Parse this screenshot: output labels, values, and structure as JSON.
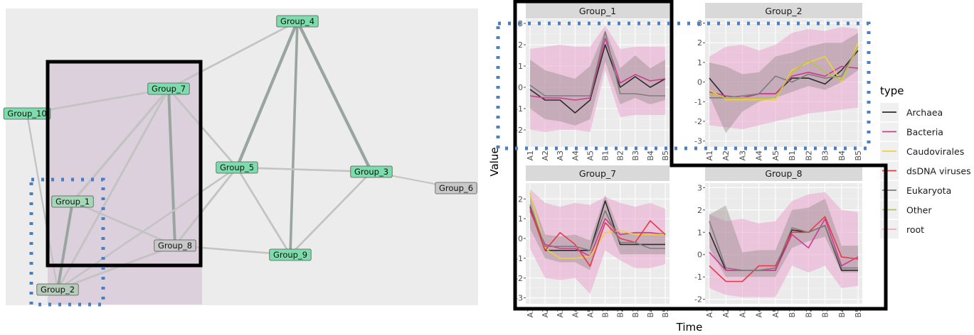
{
  "network": {
    "nodes": [
      {
        "id": "Group_4",
        "label": "Group_4",
        "color": "#7ddcac"
      },
      {
        "id": "Group_7",
        "label": "Group_7",
        "color": "#7ddcac"
      },
      {
        "id": "Group_10",
        "label": "Group_10",
        "color": "#7ddcac"
      },
      {
        "id": "Group_5",
        "label": "Group_5",
        "color": "#7ddcac"
      },
      {
        "id": "Group_3",
        "label": "Group_3",
        "color": "#7ddcac"
      },
      {
        "id": "Group_6",
        "label": "Group_6",
        "color": "#c8c8c8"
      },
      {
        "id": "Group_1",
        "label": "Group_1",
        "color": "#a6d8b8"
      },
      {
        "id": "Group_8",
        "label": "Group_8",
        "color": "#c8c8c8"
      },
      {
        "id": "Group_9",
        "label": "Group_9",
        "color": "#7ddcac"
      },
      {
        "id": "Group_2",
        "label": "Group_2",
        "color": "#b8ccbc"
      }
    ],
    "edges": [
      {
        "source": "Group_4",
        "target": "Group_5",
        "weight": 0.8
      },
      {
        "source": "Group_4",
        "target": "Group_3",
        "weight": 0.8
      },
      {
        "source": "Group_4",
        "target": "Group_9",
        "weight": 0.6
      },
      {
        "source": "Group_4",
        "target": "Group_7",
        "weight": 0.35
      },
      {
        "source": "Group_7",
        "target": "Group_10",
        "weight": 0.3
      },
      {
        "source": "Group_7",
        "target": "Group_8",
        "weight": 0.7
      },
      {
        "source": "Group_7",
        "target": "Group_1",
        "weight": 0.5
      },
      {
        "source": "Group_7",
        "target": "Group_2",
        "weight": 0.4
      },
      {
        "source": "Group_7",
        "target": "Group_5",
        "weight": 0.35
      },
      {
        "source": "Group_10",
        "target": "Group_2",
        "weight": 0.25
      },
      {
        "source": "Group_5",
        "target": "Group_3",
        "weight": 0.3
      },
      {
        "source": "Group_5",
        "target": "Group_8",
        "weight": 0.4
      },
      {
        "source": "Group_5",
        "target": "Group_9",
        "weight": 0.35
      },
      {
        "source": "Group_5",
        "target": "Group_2",
        "weight": 0.3
      },
      {
        "source": "Group_3",
        "target": "Group_9",
        "weight": 0.35
      },
      {
        "source": "Group_3",
        "target": "Group_6",
        "weight": 0.15
      },
      {
        "source": "Group_1",
        "target": "Group_8",
        "weight": 0.35
      },
      {
        "source": "Group_1",
        "target": "Group_2",
        "weight": 0.7
      },
      {
        "source": "Group_8",
        "target": "Group_9",
        "weight": 0.3
      },
      {
        "source": "Group_8",
        "target": "Group_2",
        "weight": 0.4
      }
    ]
  },
  "chart_data": {
    "type": "line",
    "xlabel": "Time",
    "ylabel": "Value",
    "x": [
      "A1",
      "A2",
      "A3",
      "A4",
      "A5",
      "B1",
      "B2",
      "B3",
      "B4",
      "B5"
    ],
    "legend": {
      "title": "type",
      "placement": "right"
    },
    "series_colors": {
      "Archaea": "#2b2b2b",
      "Bacteria": "#cc3d8f",
      "Caudovirales": "#f0d040",
      "dsDNA viruses": "#e8394a",
      "Eukaryota": "#7d7d7d",
      "Other": "#b8c24a",
      "root": "#f2a6b6"
    },
    "legend_order": [
      "Archaea",
      "Bacteria",
      "Caudovirales",
      "dsDNA viruses",
      "Eukaryota",
      "Other",
      "root"
    ],
    "panels": [
      {
        "title": "Group_1",
        "ylim": [
          -2.8,
          3.2
        ],
        "yticks": [
          -2,
          -1,
          0,
          1,
          2,
          3
        ],
        "series": [
          {
            "name": "Archaea",
            "values": [
              -0.1,
              -0.6,
              -0.6,
              -1.2,
              -0.6,
              2.0,
              0.0,
              0.5,
              0.0,
              0.4
            ]
          },
          {
            "name": "Bacteria",
            "values": [
              -0.4,
              -0.5,
              -0.5,
              -0.6,
              -0.5,
              2.3,
              0.2,
              0.6,
              0.3,
              0.4
            ]
          },
          {
            "name": "Eukaryota",
            "values": [
              0.1,
              -0.4,
              -0.4,
              -0.4,
              -0.4,
              2.6,
              -0.3,
              -0.3,
              -0.4,
              -0.4
            ]
          }
        ],
        "bands": [
          {
            "name": "Bacteria",
            "lower": [
              -2.0,
              -2.1,
              -2.0,
              -2.0,
              -2.1,
              0.8,
              -1.4,
              -1.3,
              -1.3,
              -1.3
            ],
            "upper": [
              1.8,
              1.9,
              2.0,
              1.9,
              1.9,
              2.9,
              1.8,
              1.9,
              1.9,
              1.9
            ]
          },
          {
            "name": "Archaea",
            "lower": [
              -1.0,
              -1.5,
              -1.6,
              -1.8,
              -1.5,
              1.2,
              -0.8,
              -0.5,
              -0.8,
              -0.6
            ],
            "upper": [
              1.3,
              0.8,
              0.6,
              0.4,
              1.0,
              2.7,
              0.9,
              1.5,
              0.9,
              1.3
            ]
          }
        ]
      },
      {
        "title": "Group_2",
        "ylim": [
          -3.3,
          3.2
        ],
        "yticks": [
          -3,
          -2,
          -1,
          0,
          1,
          2,
          3
        ],
        "series": [
          {
            "name": "Archaea",
            "values": [
              0.2,
              -0.8,
              -0.8,
              -0.6,
              -0.6,
              0.2,
              0.2,
              -0.1,
              0.6,
              1.6
            ]
          },
          {
            "name": "Bacteria",
            "values": [
              -0.5,
              -0.7,
              -0.8,
              -0.6,
              -0.6,
              0.3,
              0.5,
              0.3,
              0.8,
              0.7
            ]
          },
          {
            "name": "Caudovirales",
            "values": [
              -0.4,
              -0.9,
              -0.9,
              -0.9,
              -0.9,
              0.6,
              1.0,
              1.3,
              0.0,
              2.0
            ]
          },
          {
            "name": "Eukaryota",
            "values": [
              -0.8,
              -0.8,
              -0.7,
              -0.6,
              0.3,
              0.0,
              0.4,
              0.2,
              0.3,
              1.8
            ]
          },
          {
            "name": "Other",
            "values": [
              -0.6,
              -0.8,
              -0.8,
              -0.8,
              -0.8,
              0.5,
              1.1,
              0.5,
              0.1,
              1.8
            ]
          }
        ],
        "bands": [
          {
            "name": "Bacteria",
            "lower": [
              -2.2,
              -2.3,
              -2.4,
              -2.2,
              -2.0,
              -1.8,
              -1.6,
              -1.5,
              -1.4,
              -1.3
            ],
            "upper": [
              1.3,
              1.8,
              1.9,
              1.6,
              1.9,
              2.5,
              2.7,
              2.6,
              2.8,
              2.7
            ]
          },
          {
            "name": "Archaea",
            "lower": [
              -0.7,
              -2.6,
              -1.5,
              -1.0,
              -0.8,
              -0.5,
              -0.2,
              -0.4,
              0.0,
              0.6
            ],
            "upper": [
              1.0,
              0.8,
              0.4,
              0.5,
              1.3,
              1.5,
              1.8,
              2.0,
              2.0,
              2.5
            ]
          }
        ]
      },
      {
        "title": "Group_7",
        "ylim": [
          -3.3,
          2.8
        ],
        "yticks": [
          -3,
          -2,
          -1,
          0,
          1,
          2
        ],
        "series": [
          {
            "name": "Archaea",
            "values": [
              1.6,
              -0.6,
              -0.6,
              -0.6,
              -0.6,
              1.9,
              -0.3,
              -0.3,
              -0.3,
              -0.3
            ]
          },
          {
            "name": "Bacteria",
            "values": [
              1.4,
              -0.3,
              -0.5,
              -0.5,
              -0.9,
              1.0,
              0.2,
              0.3,
              0.3,
              0.2
            ]
          },
          {
            "name": "Caudovirales",
            "values": [
              2.3,
              -0.5,
              -1.0,
              -1.0,
              -0.9,
              0.3,
              0.4,
              0.2,
              0.2,
              0.2
            ]
          },
          {
            "name": "dsDNA viruses",
            "values": [
              1.5,
              -0.6,
              0.3,
              -0.3,
              -1.4,
              0.8,
              0.0,
              -0.2,
              0.9,
              0.2
            ]
          },
          {
            "name": "Eukaryota",
            "values": [
              1.7,
              -0.4,
              -0.4,
              -0.4,
              -0.6,
              1.4,
              -0.2,
              -0.2,
              -0.5,
              -0.5
            ]
          }
        ],
        "bands": [
          {
            "name": "Bacteria",
            "lower": [
              -0.5,
              -2.0,
              -2.1,
              -2.0,
              -2.8,
              -0.6,
              -1.1,
              -1.5,
              -1.5,
              -1.3
            ],
            "upper": [
              2.5,
              1.8,
              1.6,
              1.8,
              1.7,
              2.1,
              1.8,
              1.6,
              1.8,
              1.5
            ]
          },
          {
            "name": "Archaea",
            "lower": [
              0.5,
              -1.0,
              -1.2,
              -1.2,
              -1.6,
              1.0,
              -0.8,
              -0.8,
              -0.8,
              -0.8
            ],
            "upper": [
              2.3,
              0.2,
              0.1,
              0.2,
              -0.1,
              2.2,
              0.3,
              0.3,
              0.3,
              0.3
            ]
          }
        ]
      },
      {
        "title": "Group_8",
        "ylim": [
          -2.2,
          3.2
        ],
        "yticks": [
          -2,
          -1,
          0,
          1,
          2,
          3
        ],
        "series": [
          {
            "name": "Archaea",
            "values": [
              1.0,
              -0.7,
              -0.7,
              -0.7,
              -0.7,
              1.1,
              1.0,
              1.3,
              -0.7,
              -0.7
            ]
          },
          {
            "name": "Bacteria",
            "values": [
              0.1,
              -0.7,
              -0.7,
              -0.7,
              -0.7,
              0.9,
              0.3,
              1.6,
              -0.5,
              -0.1
            ]
          },
          {
            "name": "dsDNA viruses",
            "values": [
              -0.5,
              -1.2,
              -1.2,
              -0.5,
              -0.5,
              1.0,
              1.0,
              1.7,
              -0.1,
              -0.2
            ]
          },
          {
            "name": "Eukaryota",
            "values": [
              1.5,
              -0.6,
              -0.7,
              -0.7,
              -0.6,
              1.2,
              1.0,
              1.3,
              -0.6,
              -0.6
            ]
          }
        ],
        "bands": [
          {
            "name": "Bacteria",
            "lower": [
              -1.5,
              -1.8,
              -1.9,
              -1.9,
              -1.9,
              -0.5,
              -0.8,
              -0.5,
              -1.5,
              -1.4
            ],
            "upper": [
              1.8,
              1.5,
              1.6,
              1.4,
              1.5,
              2.4,
              2.7,
              2.8,
              2.0,
              1.9
            ]
          },
          {
            "name": "Archaea",
            "lower": [
              0.3,
              -1.0,
              -1.0,
              -1.0,
              -1.0,
              0.3,
              0.6,
              0.8,
              -0.8,
              -0.8
            ],
            "upper": [
              1.8,
              2.2,
              0.1,
              0.2,
              0.2,
              2.0,
              2.1,
              2.5,
              0.4,
              0.4
            ]
          }
        ]
      }
    ]
  }
}
